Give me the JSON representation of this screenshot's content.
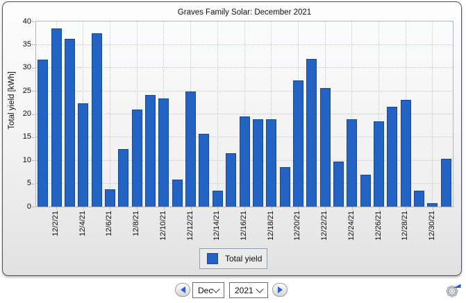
{
  "chart_data": {
    "type": "bar",
    "title": "Graves Family Solar: December 2021",
    "xlabel": "",
    "ylabel": "Total yield [kWh]",
    "ylim": [
      0,
      40
    ],
    "ytick_step": 5,
    "yticks": [
      0,
      5,
      10,
      15,
      20,
      25,
      30,
      35,
      40
    ],
    "grid": "dotted, horizontal and vertical",
    "legend_position": "bottom-center",
    "series_name": "Total yield",
    "bar_color": "#2263c4",
    "bar_border_color": "#174a94",
    "categories": [
      "12/1/21",
      "12/2/21",
      "12/3/21",
      "12/4/21",
      "12/5/21",
      "12/6/21",
      "12/7/21",
      "12/8/21",
      "12/9/21",
      "12/10/21",
      "12/11/21",
      "12/12/21",
      "12/13/21",
      "12/14/21",
      "12/15/21",
      "12/16/21",
      "12/17/21",
      "12/18/21",
      "12/19/21",
      "12/20/21",
      "12/21/21",
      "12/22/21",
      "12/23/21",
      "12/24/21",
      "12/25/21",
      "12/26/21",
      "12/27/21",
      "12/28/21",
      "12/29/21",
      "12/30/21",
      "12/31/21"
    ],
    "values": [
      31.8,
      38.5,
      36.3,
      22.3,
      37.4,
      3.8,
      12.5,
      20.9,
      24.1,
      23.3,
      5.9,
      24.8,
      15.7,
      3.4,
      11.5,
      19.5,
      18.9,
      18.9,
      8.6,
      27.3,
      31.9,
      25.6,
      9.8,
      18.9,
      6.9,
      18.4,
      21.5,
      23.0,
      3.4,
      0.7,
      10.4
    ],
    "xtick_labels_shown": [
      "12/2/21",
      "12/4/21",
      "12/6/21",
      "12/8/21",
      "12/10/21",
      "12/12/21",
      "12/14/21",
      "12/16/21",
      "12/18/21",
      "12/20/21",
      "12/22/21",
      "12/24/21",
      "12/26/21",
      "12/28/21",
      "12/30/21"
    ]
  },
  "legend": {
    "label": "Total yield"
  },
  "controls": {
    "prev_button": "previous-month",
    "next_button": "next-month",
    "month_value": "Dec",
    "year_value": "2021"
  },
  "icons": {
    "prev": "arrow-left-icon",
    "next": "arrow-right-icon",
    "settings": "gear-with-blue-arrow-icon"
  },
  "colors": {
    "bar_fill": "#2263c4",
    "bar_border": "#174a94",
    "panel_border": "#49525c",
    "grid": "#c7c7c8",
    "accent_blue": "#2e5fd2"
  }
}
